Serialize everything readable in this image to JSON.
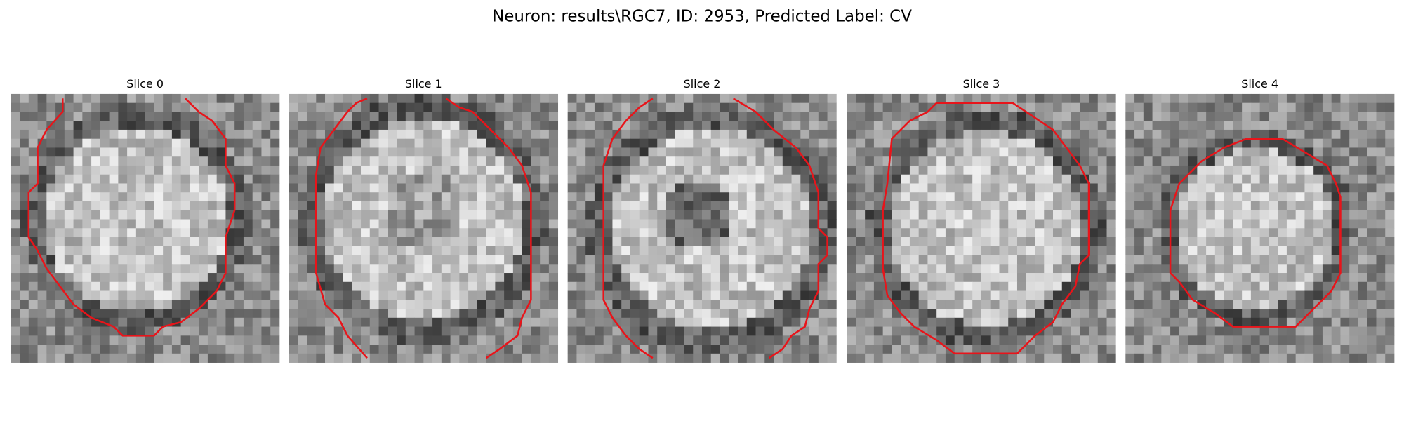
{
  "title": "Neuron: results\\RGC7, ID: 2953, Predicted Label: CV",
  "panels": [
    {
      "title": "Slice 0"
    },
    {
      "title": "Slice 1"
    },
    {
      "title": "Slice 2"
    },
    {
      "title": "Slice 3"
    },
    {
      "title": "Slice 4"
    }
  ]
}
